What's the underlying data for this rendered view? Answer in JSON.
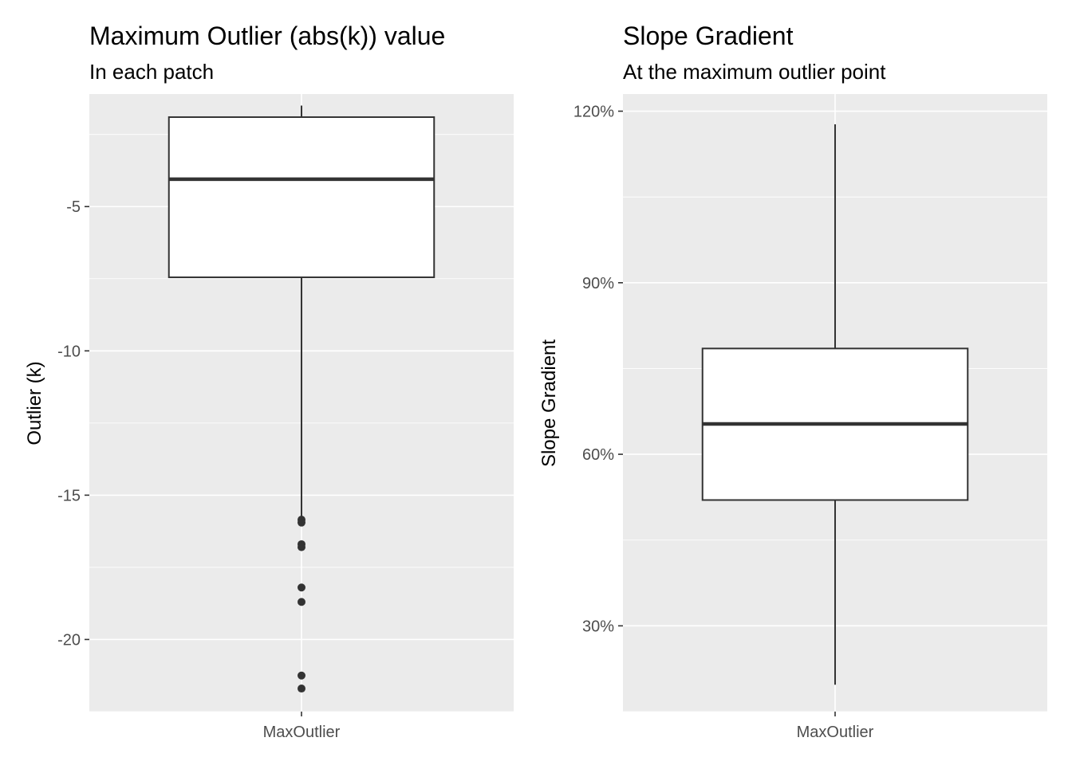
{
  "chart_data": [
    {
      "type": "boxplot",
      "title": "Maximum Outlier (abs(k)) value",
      "subtitle": "In each patch",
      "xlabel": "",
      "ylabel": "Outlier (k)",
      "categories": [
        "MaxOutlier"
      ],
      "ylim": [
        -22.5,
        -1.1
      ],
      "yticks": [
        -5,
        -10,
        -15,
        -20
      ],
      "ytick_labels": [
        "-5",
        "-10",
        "-15",
        "-20"
      ],
      "grid": true,
      "boxes": [
        {
          "category": "MaxOutlier",
          "whisker_low": -15.8,
          "q1": -7.45,
          "median": -4.05,
          "q3": -1.9,
          "whisker_high": -1.5,
          "outliers": [
            -15.85,
            -15.95,
            -16.7,
            -16.8,
            -18.2,
            -18.7,
            -21.25,
            -21.7
          ]
        }
      ]
    },
    {
      "type": "boxplot",
      "title": "Slope Gradient",
      "subtitle": "At the maximum outlier point",
      "xlabel": "",
      "ylabel": "Slope Gradient",
      "categories": [
        "MaxOutlier"
      ],
      "ylim": [
        0.15,
        1.23
      ],
      "yticks": [
        0.3,
        0.6,
        0.9,
        1.2
      ],
      "ytick_labels": [
        "30%",
        "60%",
        "90%",
        "120%"
      ],
      "grid": true,
      "boxes": [
        {
          "category": "MaxOutlier",
          "whisker_low": 0.197,
          "q1": 0.52,
          "median": 0.653,
          "q3": 0.785,
          "whisker_high": 1.177,
          "outliers": []
        }
      ]
    }
  ]
}
